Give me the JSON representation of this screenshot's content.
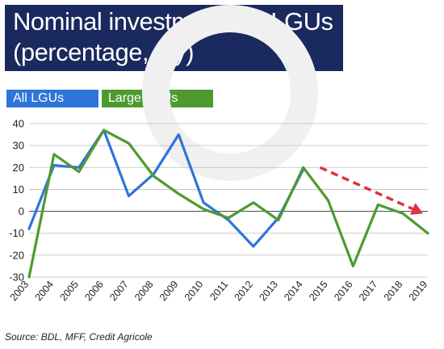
{
  "title": {
    "line1": "Nominal investments of LGUs",
    "line2": "(percentage, y/y)"
  },
  "legend": [
    {
      "label": "All LGUs",
      "color": "#2f74d8"
    },
    {
      "label": "Large LGUs",
      "color": "#4e9a2f"
    }
  ],
  "source": "Source: BDL, MFF, Credit Agricole",
  "colors": {
    "title_bg": "#1a2a5e",
    "all_lgus": "#2f74d8",
    "large_lgus": "#4e9a2f",
    "trend_arrow": "#e0333a",
    "grid": "#bdbdbd"
  },
  "chart_data": {
    "type": "line",
    "title": "Nominal investments of LGUs (percentage, y/y)",
    "x": [
      "2003",
      "2004",
      "2005",
      "2006",
      "2007",
      "2008",
      "2009",
      "2010",
      "2011",
      "2012",
      "2013",
      "2014",
      "2015",
      "2016",
      "2017",
      "2018",
      "2019"
    ],
    "ylim": [
      -30,
      40
    ],
    "yticks": [
      40,
      30,
      20,
      10,
      0,
      -10,
      -20,
      -30
    ],
    "grid": true,
    "legend_position": "top-left",
    "series": [
      {
        "name": "All LGUs",
        "color": "#2f74d8",
        "values": [
          -8,
          21,
          20,
          37,
          7,
          17,
          35,
          4,
          -4,
          -16,
          -3,
          19,
          null,
          null,
          null,
          null,
          null
        ]
      },
      {
        "name": "Large LGUs",
        "color": "#4e9a2f",
        "values": [
          -30,
          26,
          18,
          37,
          31,
          16,
          8,
          1,
          -3,
          4,
          -4,
          20,
          5,
          -25,
          3,
          -1,
          -10
        ]
      }
    ],
    "annotations": [
      {
        "type": "trend-arrow",
        "color": "#e0333a",
        "from": {
          "x": "2015",
          "y": 20
        },
        "to": {
          "x": "2019",
          "y": -1
        }
      }
    ]
  }
}
